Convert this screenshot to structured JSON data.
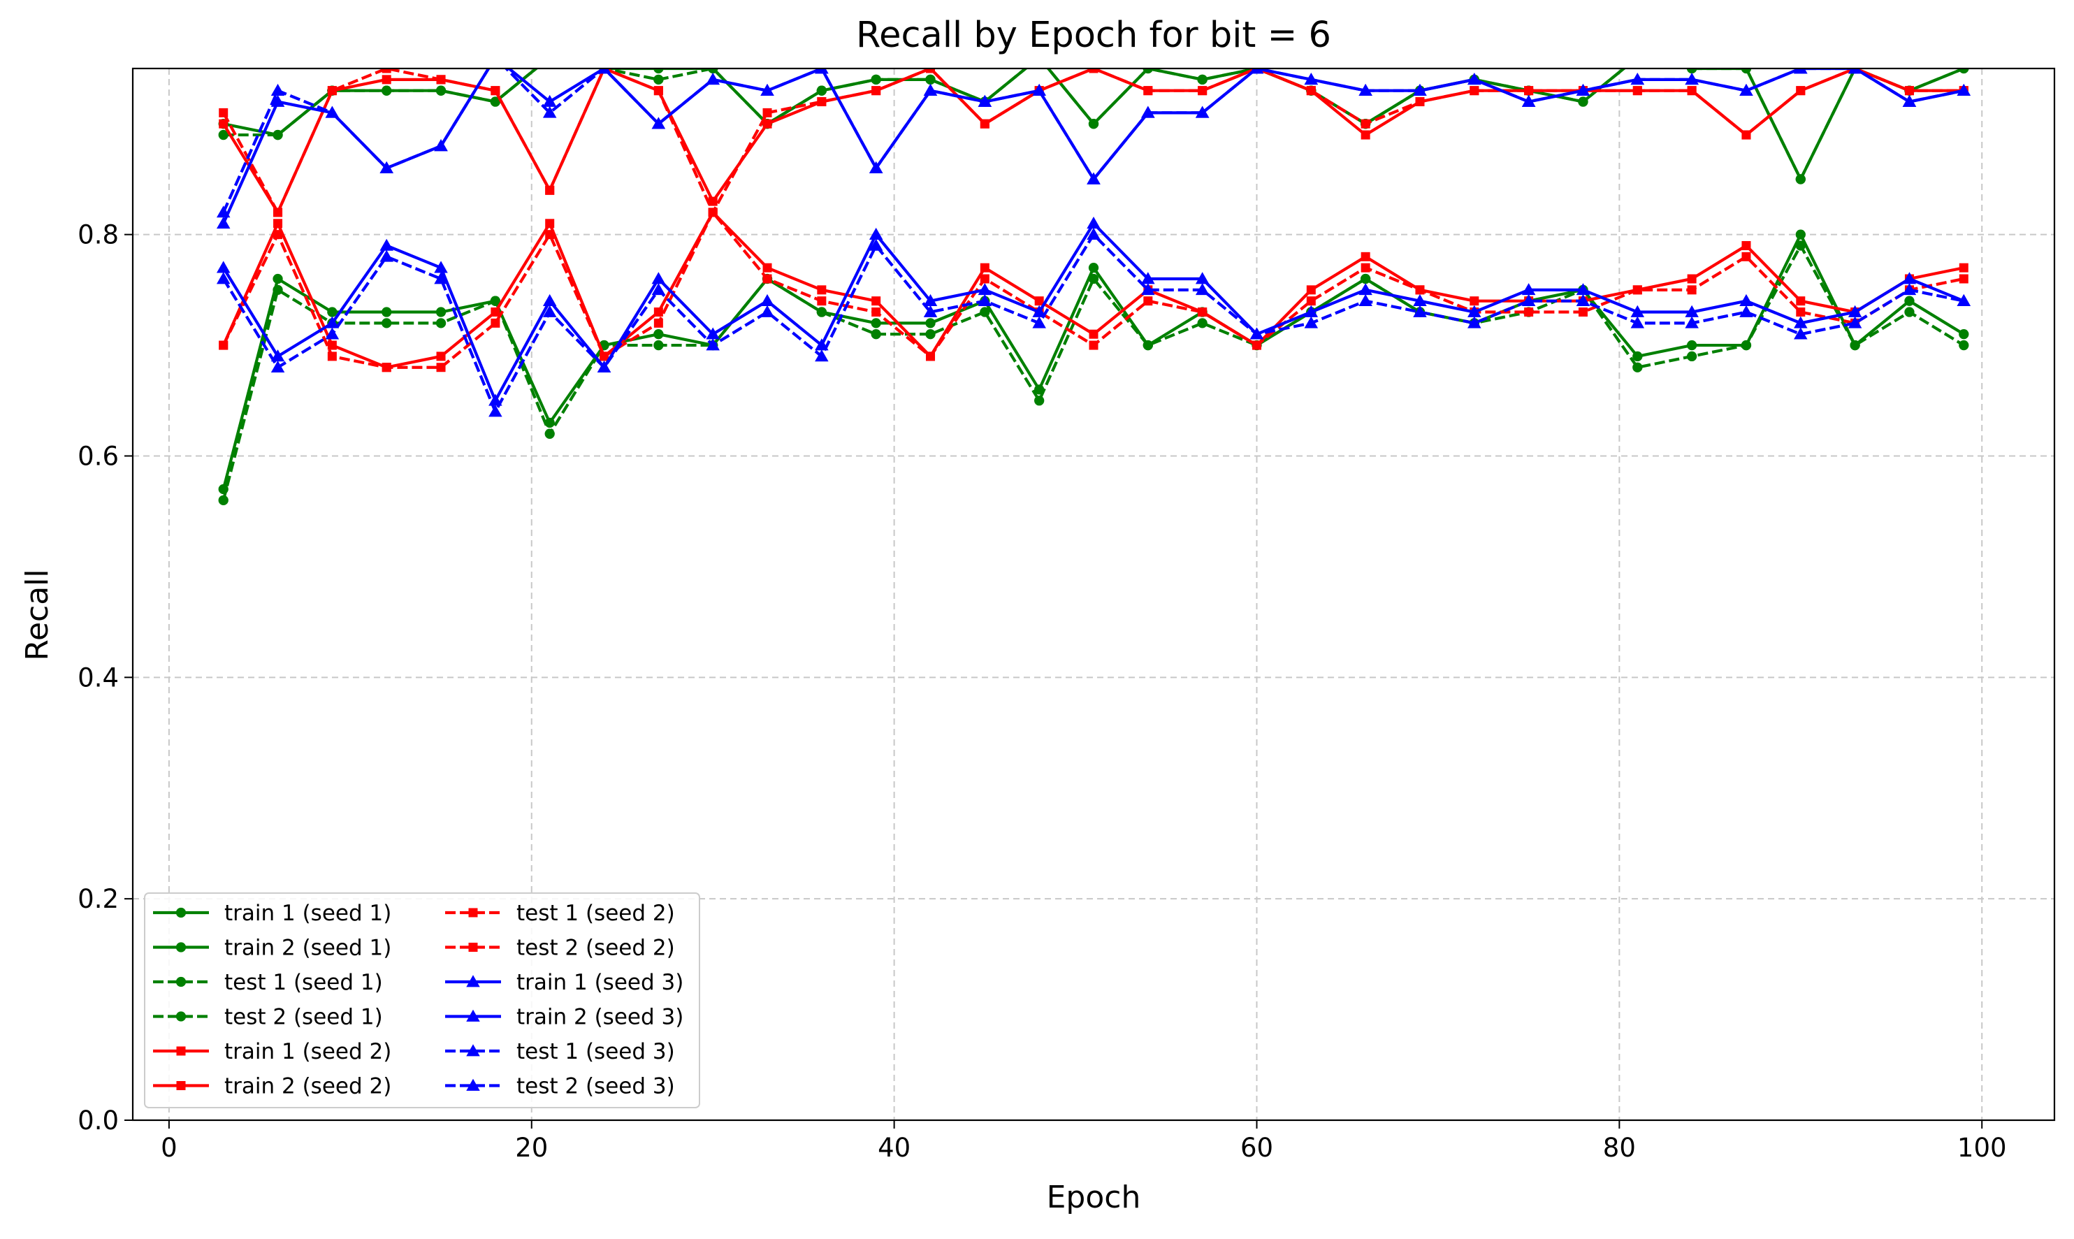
{
  "chart_data": {
    "type": "line",
    "title": "Recall by Epoch for bit = 6",
    "xlabel": "Epoch",
    "ylabel": "Recall",
    "xlim": [
      -2,
      104
    ],
    "ylim": [
      0.0,
      0.95
    ],
    "xticks": [
      0,
      20,
      40,
      60,
      80,
      100
    ],
    "yticks": [
      0.0,
      0.2,
      0.4,
      0.6,
      0.8
    ],
    "xtick_labels": [
      "0",
      "20",
      "40",
      "60",
      "80",
      "100"
    ],
    "ytick_labels": [
      "0.0",
      "0.2",
      "0.4",
      "0.6",
      "0.8"
    ],
    "grid": true,
    "legend_position": "lower-left",
    "legend_columns": 2,
    "x": [
      3,
      6,
      9,
      12,
      15,
      18,
      21,
      24,
      27,
      30,
      33,
      36,
      39,
      42,
      45,
      48,
      51,
      54,
      57,
      60,
      63,
      66,
      69,
      72,
      75,
      78,
      81,
      84,
      87,
      90,
      93,
      96,
      99
    ],
    "series": [
      {
        "name": "train 1 (seed 1)",
        "color": "#008000",
        "dash": "solid",
        "marker": "circle",
        "values": [
          0.9,
          0.89,
          0.93,
          0.93,
          0.93,
          0.92,
          0.96,
          0.95,
          0.95,
          0.95,
          0.9,
          0.93,
          0.94,
          0.94,
          0.92,
          0.96,
          0.9,
          0.95,
          0.94,
          0.95,
          0.93,
          0.9,
          0.93,
          0.94,
          0.93,
          0.92,
          0.96,
          0.95,
          0.95,
          0.85,
          0.95,
          0.93,
          0.95
        ]
      },
      {
        "name": "train 2 (seed 1)",
        "color": "#008000",
        "dash": "solid",
        "marker": "circle",
        "values": [
          0.57,
          0.76,
          0.73,
          0.73,
          0.73,
          0.74,
          0.63,
          0.7,
          0.71,
          0.7,
          0.76,
          0.73,
          0.72,
          0.72,
          0.74,
          0.66,
          0.77,
          0.7,
          0.73,
          0.7,
          0.73,
          0.76,
          0.73,
          0.72,
          0.74,
          0.75,
          0.69,
          0.7,
          0.7,
          0.8,
          0.7,
          0.74,
          0.71
        ]
      },
      {
        "name": "test 1 (seed 1)",
        "color": "#008000",
        "dash": "dashed",
        "marker": "circle",
        "values": [
          0.89,
          0.89,
          0.93,
          0.93,
          0.93,
          0.92,
          0.96,
          0.95,
          0.94,
          0.95,
          0.9,
          0.93,
          0.94,
          0.94,
          0.92,
          0.96,
          0.9,
          0.95,
          0.94,
          0.95,
          0.93,
          0.9,
          0.93,
          0.94,
          0.93,
          0.92,
          0.96,
          0.95,
          0.95,
          0.85,
          0.95,
          0.93,
          0.95
        ]
      },
      {
        "name": "test 2 (seed 1)",
        "color": "#008000",
        "dash": "dashed",
        "marker": "circle",
        "values": [
          0.56,
          0.75,
          0.72,
          0.72,
          0.72,
          0.74,
          0.62,
          0.7,
          0.7,
          0.7,
          0.76,
          0.73,
          0.71,
          0.71,
          0.73,
          0.65,
          0.76,
          0.7,
          0.72,
          0.7,
          0.73,
          0.76,
          0.73,
          0.72,
          0.73,
          0.75,
          0.68,
          0.69,
          0.7,
          0.79,
          0.7,
          0.73,
          0.7
        ]
      },
      {
        "name": "train 1 (seed 2)",
        "color": "#ff0000",
        "dash": "solid",
        "marker": "square",
        "values": [
          0.9,
          0.82,
          0.93,
          0.94,
          0.94,
          0.93,
          0.84,
          0.95,
          0.93,
          0.83,
          0.9,
          0.92,
          0.93,
          0.95,
          0.9,
          0.93,
          0.95,
          0.93,
          0.93,
          0.95,
          0.93,
          0.89,
          0.92,
          0.93,
          0.93,
          0.93,
          0.93,
          0.93,
          0.89,
          0.93,
          0.95,
          0.93,
          0.93
        ]
      },
      {
        "name": "train 2 (seed 2)",
        "color": "#ff0000",
        "dash": "solid",
        "marker": "square",
        "values": [
          0.7,
          0.81,
          0.7,
          0.68,
          0.69,
          0.73,
          0.81,
          0.69,
          0.73,
          0.82,
          0.77,
          0.75,
          0.74,
          0.69,
          0.77,
          0.74,
          0.71,
          0.75,
          0.73,
          0.7,
          0.75,
          0.78,
          0.75,
          0.74,
          0.74,
          0.74,
          0.75,
          0.76,
          0.79,
          0.74,
          0.73,
          0.76,
          0.77
        ]
      },
      {
        "name": "test 1 (seed 2)",
        "color": "#ff0000",
        "dash": "dashed",
        "marker": "square",
        "values": [
          0.91,
          0.82,
          0.93,
          0.95,
          0.94,
          0.93,
          0.84,
          0.95,
          0.93,
          0.82,
          0.91,
          0.92,
          0.93,
          0.95,
          0.9,
          0.93,
          0.95,
          0.93,
          0.93,
          0.95,
          0.93,
          0.9,
          0.92,
          0.93,
          0.93,
          0.93,
          0.93,
          0.93,
          0.89,
          0.93,
          0.95,
          0.93,
          0.93
        ]
      },
      {
        "name": "test 2 (seed 2)",
        "color": "#ff0000",
        "dash": "dashed",
        "marker": "square",
        "values": [
          0.7,
          0.8,
          0.69,
          0.68,
          0.68,
          0.72,
          0.8,
          0.69,
          0.72,
          0.82,
          0.76,
          0.74,
          0.73,
          0.69,
          0.76,
          0.73,
          0.7,
          0.74,
          0.73,
          0.7,
          0.74,
          0.77,
          0.75,
          0.73,
          0.73,
          0.73,
          0.75,
          0.75,
          0.78,
          0.73,
          0.72,
          0.75,
          0.76
        ]
      },
      {
        "name": "train 1 (seed 3)",
        "color": "#0000ff",
        "dash": "solid",
        "marker": "triangle",
        "values": [
          0.81,
          0.92,
          0.91,
          0.86,
          0.88,
          0.96,
          0.92,
          0.95,
          0.9,
          0.94,
          0.93,
          0.95,
          0.86,
          0.93,
          0.92,
          0.93,
          0.85,
          0.91,
          0.91,
          0.95,
          0.94,
          0.93,
          0.93,
          0.94,
          0.92,
          0.93,
          0.94,
          0.94,
          0.93,
          0.95,
          0.95,
          0.92,
          0.93
        ]
      },
      {
        "name": "train 2 (seed 3)",
        "color": "#0000ff",
        "dash": "solid",
        "marker": "triangle",
        "values": [
          0.77,
          0.69,
          0.72,
          0.79,
          0.77,
          0.65,
          0.74,
          0.68,
          0.76,
          0.71,
          0.74,
          0.7,
          0.8,
          0.74,
          0.75,
          0.73,
          0.81,
          0.76,
          0.76,
          0.71,
          0.73,
          0.75,
          0.74,
          0.73,
          0.75,
          0.75,
          0.73,
          0.73,
          0.74,
          0.72,
          0.73,
          0.76,
          0.74
        ]
      },
      {
        "name": "test 1 (seed 3)",
        "color": "#0000ff",
        "dash": "dashed",
        "marker": "triangle",
        "values": [
          0.82,
          0.93,
          0.91,
          0.86,
          0.88,
          0.96,
          0.91,
          0.95,
          0.9,
          0.94,
          0.93,
          0.95,
          0.86,
          0.93,
          0.92,
          0.93,
          0.85,
          0.91,
          0.91,
          0.95,
          0.94,
          0.93,
          0.93,
          0.94,
          0.92,
          0.93,
          0.94,
          0.94,
          0.93,
          0.95,
          0.95,
          0.92,
          0.93
        ]
      },
      {
        "name": "test 2 (seed 3)",
        "color": "#0000ff",
        "dash": "dashed",
        "marker": "triangle",
        "values": [
          0.76,
          0.68,
          0.71,
          0.78,
          0.76,
          0.64,
          0.73,
          0.68,
          0.75,
          0.7,
          0.73,
          0.69,
          0.79,
          0.73,
          0.74,
          0.72,
          0.8,
          0.75,
          0.75,
          0.71,
          0.72,
          0.74,
          0.73,
          0.72,
          0.74,
          0.74,
          0.72,
          0.72,
          0.73,
          0.71,
          0.72,
          0.75,
          0.74
        ]
      }
    ]
  }
}
